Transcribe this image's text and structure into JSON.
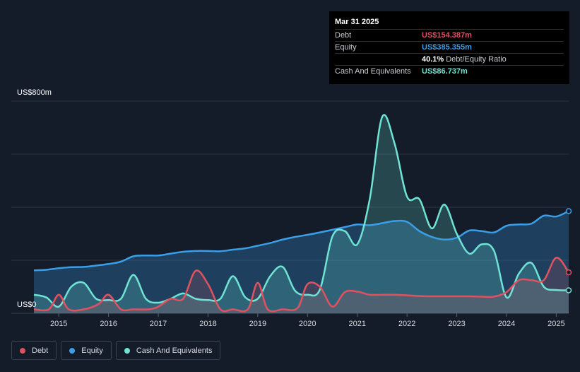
{
  "tooltip": {
    "date": "Mar 31 2025",
    "rows": [
      {
        "label": "Debt",
        "value": "US$154.387m",
        "color": "#e05260"
      },
      {
        "label": "Equity",
        "value": "US$385.355m",
        "color": "#3b9ee8"
      },
      {
        "label": "",
        "value": "40.1%",
        "suffix": "Debt/Equity Ratio",
        "color": "#ffffff"
      },
      {
        "label": "Cash And Equivalents",
        "value": "US$86.737m",
        "color": "#6fe3d4"
      }
    ]
  },
  "colors": {
    "background": "#141c29",
    "debt": "#e05260",
    "equity": "#3b9ee8",
    "cash": "#6fe3d4",
    "grid": "#2b3442"
  },
  "chart_data": {
    "type": "area",
    "ylabel_top": "US$800m",
    "ylabel_bottom": "US$0",
    "ylim": [
      0,
      800
    ],
    "xlim": [
      2014.5,
      2025.25
    ],
    "x_ticks": [
      "2015",
      "2016",
      "2017",
      "2018",
      "2019",
      "2020",
      "2021",
      "2022",
      "2023",
      "2024",
      "2025"
    ],
    "grid": true,
    "legend_position": "bottom-left",
    "series": [
      {
        "name": "Debt",
        "points": [
          [
            2014.5,
            15
          ],
          [
            2014.8,
            15
          ],
          [
            2015.0,
            70
          ],
          [
            2015.2,
            15
          ],
          [
            2015.5,
            15
          ],
          [
            2015.8,
            35
          ],
          [
            2016.0,
            70
          ],
          [
            2016.25,
            15
          ],
          [
            2016.5,
            15
          ],
          [
            2016.8,
            15
          ],
          [
            2017.0,
            25
          ],
          [
            2017.25,
            55
          ],
          [
            2017.5,
            55
          ],
          [
            2017.75,
            160
          ],
          [
            2018.0,
            110
          ],
          [
            2018.25,
            15
          ],
          [
            2018.5,
            15
          ],
          [
            2018.8,
            15
          ],
          [
            2019.0,
            115
          ],
          [
            2019.2,
            15
          ],
          [
            2019.5,
            15
          ],
          [
            2019.8,
            20
          ],
          [
            2020.0,
            110
          ],
          [
            2020.25,
            100
          ],
          [
            2020.5,
            25
          ],
          [
            2020.75,
            80
          ],
          [
            2021.0,
            82
          ],
          [
            2021.25,
            70
          ],
          [
            2021.5,
            70
          ],
          [
            2021.75,
            70
          ],
          [
            2022.0,
            68
          ],
          [
            2022.25,
            65
          ],
          [
            2022.5,
            64
          ],
          [
            2022.75,
            64
          ],
          [
            2023.0,
            64
          ],
          [
            2023.25,
            64
          ],
          [
            2023.5,
            63
          ],
          [
            2023.75,
            63
          ],
          [
            2024.0,
            80
          ],
          [
            2024.25,
            125
          ],
          [
            2024.5,
            125
          ],
          [
            2024.75,
            125
          ],
          [
            2025.0,
            210
          ],
          [
            2025.25,
            154.387
          ]
        ]
      },
      {
        "name": "Equity",
        "points": [
          [
            2014.5,
            162
          ],
          [
            2014.75,
            164
          ],
          [
            2015.0,
            170
          ],
          [
            2015.25,
            174
          ],
          [
            2015.5,
            175
          ],
          [
            2015.75,
            180
          ],
          [
            2016.0,
            186
          ],
          [
            2016.25,
            195
          ],
          [
            2016.5,
            215
          ],
          [
            2016.75,
            218
          ],
          [
            2017.0,
            218
          ],
          [
            2017.25,
            225
          ],
          [
            2017.5,
            232
          ],
          [
            2017.75,
            235
          ],
          [
            2018.0,
            235
          ],
          [
            2018.25,
            234
          ],
          [
            2018.5,
            240
          ],
          [
            2018.75,
            245
          ],
          [
            2019.0,
            255
          ],
          [
            2019.25,
            265
          ],
          [
            2019.5,
            278
          ],
          [
            2019.75,
            288
          ],
          [
            2020.0,
            296
          ],
          [
            2020.25,
            305
          ],
          [
            2020.5,
            315
          ],
          [
            2020.75,
            325
          ],
          [
            2021.0,
            335
          ],
          [
            2021.25,
            332
          ],
          [
            2021.5,
            340
          ],
          [
            2021.75,
            348
          ],
          [
            2022.0,
            345
          ],
          [
            2022.25,
            310
          ],
          [
            2022.5,
            288
          ],
          [
            2022.75,
            278
          ],
          [
            2023.0,
            285
          ],
          [
            2023.25,
            312
          ],
          [
            2023.5,
            310
          ],
          [
            2023.75,
            305
          ],
          [
            2024.0,
            330
          ],
          [
            2024.25,
            335
          ],
          [
            2024.5,
            338
          ],
          [
            2024.75,
            368
          ],
          [
            2025.0,
            365
          ],
          [
            2025.25,
            385.355
          ]
        ]
      },
      {
        "name": "Cash And Equivalents",
        "points": [
          [
            2014.5,
            70
          ],
          [
            2014.75,
            60
          ],
          [
            2015.0,
            25
          ],
          [
            2015.25,
            100
          ],
          [
            2015.5,
            115
          ],
          [
            2015.75,
            55
          ],
          [
            2016.0,
            50
          ],
          [
            2016.25,
            55
          ],
          [
            2016.5,
            145
          ],
          [
            2016.75,
            55
          ],
          [
            2017.0,
            40
          ],
          [
            2017.25,
            55
          ],
          [
            2017.5,
            75
          ],
          [
            2017.75,
            55
          ],
          [
            2018.0,
            50
          ],
          [
            2018.25,
            55
          ],
          [
            2018.5,
            140
          ],
          [
            2018.75,
            60
          ],
          [
            2019.0,
            55
          ],
          [
            2019.25,
            140
          ],
          [
            2019.5,
            175
          ],
          [
            2019.75,
            85
          ],
          [
            2020.0,
            70
          ],
          [
            2020.25,
            90
          ],
          [
            2020.5,
            290
          ],
          [
            2020.75,
            310
          ],
          [
            2021.0,
            260
          ],
          [
            2021.25,
            430
          ],
          [
            2021.5,
            740
          ],
          [
            2021.75,
            640
          ],
          [
            2022.0,
            440
          ],
          [
            2022.25,
            430
          ],
          [
            2022.5,
            320
          ],
          [
            2022.75,
            410
          ],
          [
            2023.0,
            300
          ],
          [
            2023.25,
            225
          ],
          [
            2023.5,
            260
          ],
          [
            2023.75,
            235
          ],
          [
            2024.0,
            60
          ],
          [
            2024.25,
            150
          ],
          [
            2024.5,
            190
          ],
          [
            2024.75,
            100
          ],
          [
            2025.0,
            88
          ],
          [
            2025.25,
            86.737
          ]
        ]
      }
    ]
  },
  "legend": [
    {
      "label": "Debt",
      "color": "#e05260"
    },
    {
      "label": "Equity",
      "color": "#3b9ee8"
    },
    {
      "label": "Cash And Equivalents",
      "color": "#6fe3d4"
    }
  ]
}
